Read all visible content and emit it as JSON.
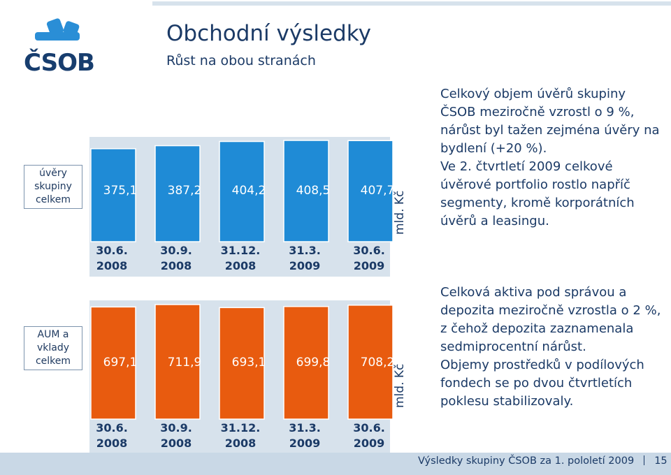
{
  "header": {
    "title": "Obchodní výsledky",
    "subtitle": "Růst na obou stranách",
    "logo_text": "ČSOB"
  },
  "colors": {
    "loans_bar": "#1f8bd6",
    "aum_bar": "#e85b0f",
    "panel_bg": "#d7e2ec",
    "text": "#1b3a66"
  },
  "chart_data": [
    {
      "type": "bar",
      "categories": [
        [
          "30.6.",
          "2008"
        ],
        [
          "30.9.",
          "2008"
        ],
        [
          "31.12.",
          "2008"
        ],
        [
          "31.3.",
          "2009"
        ],
        [
          "30.6.",
          "2009"
        ]
      ],
      "values": [
        375.1,
        387.2,
        404.2,
        408.5,
        407.7
      ],
      "value_labels": [
        "375,1",
        "387,2",
        "404,2",
        "408,5",
        "407,7"
      ],
      "category_label": [
        "úvěry",
        "skupiny",
        "celkem"
      ],
      "unit": "mld. Kč"
    },
    {
      "type": "bar",
      "categories": [
        [
          "30.6.",
          "2008"
        ],
        [
          "30.9.",
          "2008"
        ],
        [
          "31.12.",
          "2008"
        ],
        [
          "31.3.",
          "2009"
        ],
        [
          "30.6.",
          "2009"
        ]
      ],
      "values": [
        697.1,
        711.9,
        693.1,
        699.8,
        708.2
      ],
      "value_labels": [
        "697,1",
        "711,9",
        "693,1",
        "699,8",
        "708,2"
      ],
      "category_label": [
        "AUM a",
        "vklady",
        "celkem"
      ],
      "unit": "mld. Kč"
    }
  ],
  "notes": {
    "loans": [
      "Celkový objem úvěrů skupiny ČSOB meziročně vzrostl o 9 %, nárůst byl tažen zejména úvěry na bydlení (+20 %).",
      "Ve 2. čtvrtletí 2009 celkové úvěrové portfolio rostlo napříč segmenty, kromě korporátních úvěrů a leasingu."
    ],
    "aum": [
      "Celková aktiva pod správou a depozita meziročně vzrostla o 2 %, z čehož depozita zaznamenala sedmiprocentní nárůst.",
      "Objemy prostředků v podílových fondech se po dvou čtvrtletích poklesu stabilizovaly."
    ]
  },
  "footer": {
    "text": "Výsledky skupiny ČSOB za 1. pololetí 2009",
    "page": "15"
  }
}
